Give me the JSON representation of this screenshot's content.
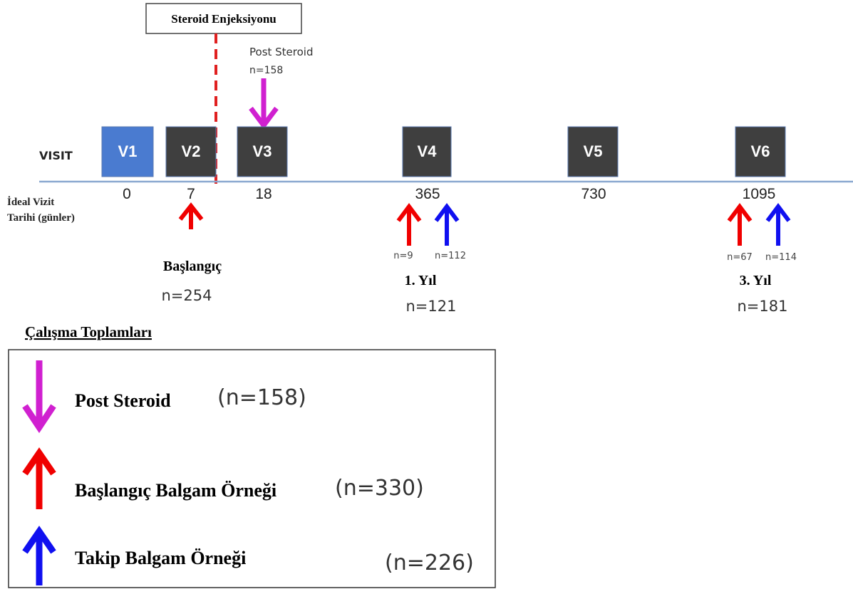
{
  "injection": "Steroid Enjeksiyonu",
  "post_steroid": {
    "label": "Post Steroid",
    "n": "n=158"
  },
  "visit_label": "VISIT",
  "visits": [
    {
      "label": "V1",
      "day": "0"
    },
    {
      "label": "V2",
      "day": "7"
    },
    {
      "label": "V3",
      "day": "18"
    },
    {
      "label": "V4",
      "day": "365"
    },
    {
      "label": "V5",
      "day": "730"
    },
    {
      "label": "V6",
      "day": "1095"
    }
  ],
  "day_label": [
    "İdeal Vizit",
    "Tarihi (günler)"
  ],
  "groups": [
    {
      "title": "Başlangıç",
      "n": "n=254"
    },
    {
      "title": "1. Yıl",
      "n": "n=121",
      "baseline_n": "n=9",
      "followup_n": "n=112"
    },
    {
      "title": "3. Yıl",
      "n": "n=181",
      "baseline_n": "n=67",
      "followup_n": "n=114"
    }
  ],
  "legend": {
    "title": "Çalışma Toplamları",
    "items": [
      {
        "label": "Post Steroid",
        "n": "(n=158)"
      },
      {
        "label": "Başlangıç Balgam Örneği",
        "n": "(n=330)"
      },
      {
        "label": "Takip Balgam Örneği",
        "n": "(n=226)"
      }
    ]
  }
}
